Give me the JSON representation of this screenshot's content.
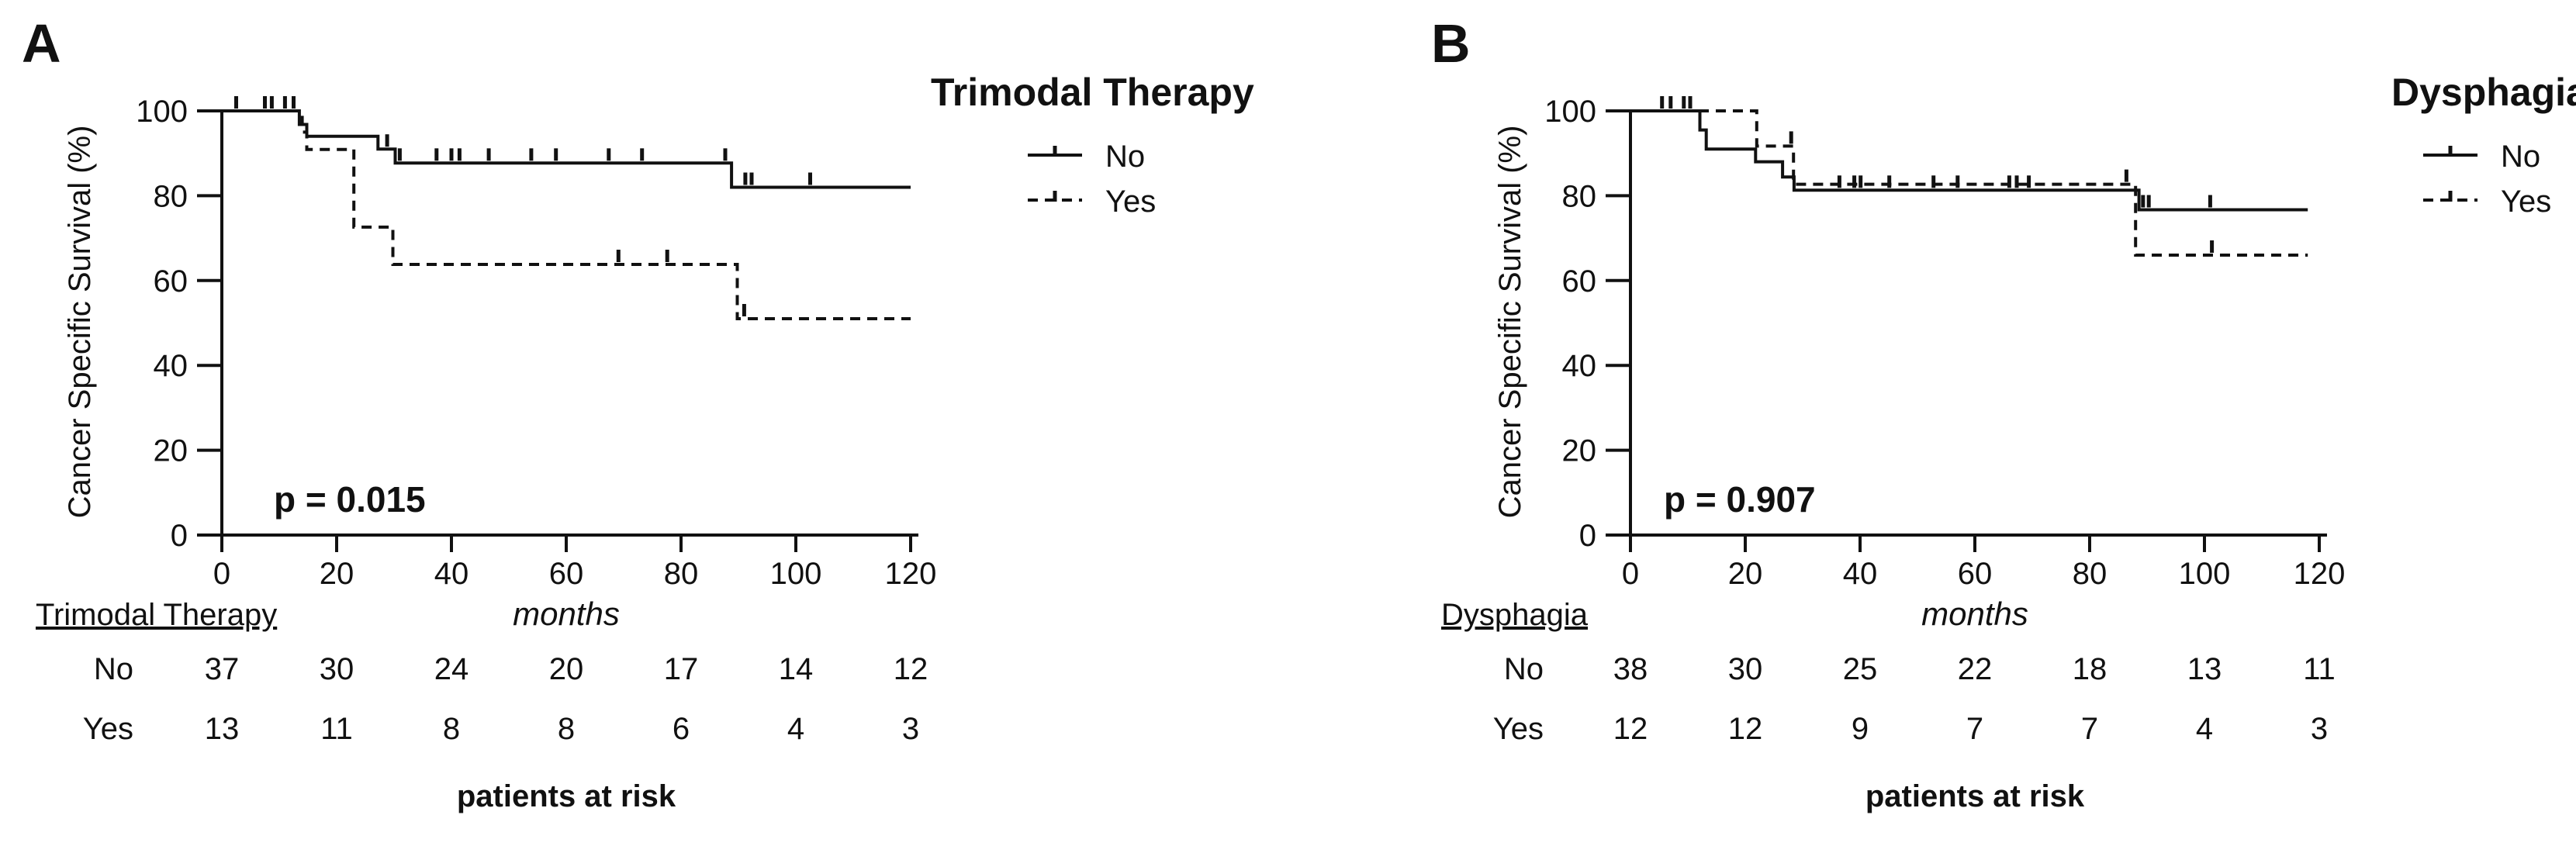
{
  "figure": {
    "background_color": "#ffffff",
    "ink_color": "#111111",
    "panels": [
      {
        "label": "A",
        "ylabel": "Cancer Specific Survival (%)",
        "xlabel": "months",
        "p_value": "p = 0.015",
        "legend": {
          "title": "Trimodal Therapy",
          "entries": [
            {
              "label": "No",
              "style": "solid"
            },
            {
              "label": "Yes",
              "style": "dashed"
            }
          ]
        },
        "risk_table": {
          "title": "Trimodal Therapy",
          "rows": [
            {
              "label": "No"
            },
            {
              "label": "Yes"
            }
          ],
          "footer": "patients at risk"
        }
      },
      {
        "label": "B",
        "ylabel": "Cancer Specific Survival (%)",
        "xlabel": "months",
        "p_value": "p = 0.907",
        "legend": {
          "title": "Dysphagia",
          "entries": [
            {
              "label": "No",
              "style": "solid"
            },
            {
              "label": "Yes",
              "style": "dashed"
            }
          ]
        },
        "risk_table": {
          "title": "Dysphagia",
          "rows": [
            {
              "label": "No"
            },
            {
              "label": "Yes"
            }
          ],
          "footer": "patients at risk"
        }
      }
    ]
  },
  "chart_data": [
    {
      "type": "line",
      "subtype": "kaplan-meier-step",
      "panel": "A",
      "group_variable": "Trimodal Therapy",
      "p_value_text": "p = 0.015",
      "xlabel": "months",
      "ylabel": "Cancer Specific Survival (%)",
      "xlim": [
        0,
        120
      ],
      "ylim": [
        0,
        100
      ],
      "xticks": [
        0,
        20,
        40,
        60,
        80,
        100,
        120
      ],
      "yticks": [
        0,
        20,
        40,
        60,
        80,
        100
      ],
      "grid": false,
      "legend_position": "right-top",
      "series": [
        {
          "name": "No",
          "style": "solid",
          "steps": [
            [
              0,
              100
            ],
            [
              13.5,
              100
            ],
            [
              13.5,
              96.8
            ],
            [
              14.8,
              96.8
            ],
            [
              14.8,
              94
            ],
            [
              27.2,
              94
            ],
            [
              27.2,
              91
            ],
            [
              30.2,
              91
            ],
            [
              30.2,
              87.7
            ],
            [
              88.8,
              87.7
            ],
            [
              88.8,
              82
            ],
            [
              120,
              82
            ]
          ],
          "censors": [
            [
              2.5,
              100
            ],
            [
              7.5,
              100
            ],
            [
              8.7,
              100
            ],
            [
              11,
              100
            ],
            [
              12.5,
              100
            ],
            [
              28.8,
              91
            ],
            [
              31,
              87.7
            ],
            [
              37.4,
              87.7
            ],
            [
              40,
              87.7
            ],
            [
              41.4,
              87.7
            ],
            [
              46.5,
              87.7
            ],
            [
              53.9,
              87.7
            ],
            [
              58.2,
              87.7
            ],
            [
              67.4,
              87.7
            ],
            [
              73.2,
              87.7
            ],
            [
              87.7,
              87.7
            ],
            [
              91.2,
              82
            ],
            [
              92.3,
              82
            ],
            [
              102.5,
              82
            ]
          ]
        },
        {
          "name": "Yes",
          "style": "dashed",
          "steps": [
            [
              0,
              100
            ],
            [
              14,
              100
            ],
            [
              14,
              95
            ],
            [
              14.8,
              95
            ],
            [
              14.8,
              90.9
            ],
            [
              23,
              90.9
            ],
            [
              23,
              72.6
            ],
            [
              29.8,
              72.6
            ],
            [
              29.8,
              63.8
            ],
            [
              89.8,
              63.8
            ],
            [
              89.8,
              51
            ],
            [
              120,
              51
            ]
          ],
          "censors": [
            [
              69.1,
              63.8
            ],
            [
              77.6,
              63.8
            ],
            [
              91,
              51
            ]
          ]
        }
      ],
      "risk_table": {
        "times": [
          0,
          20,
          40,
          60,
          80,
          100,
          120
        ],
        "rows": [
          {
            "label": "No",
            "counts": [
              37,
              30,
              24,
              20,
              17,
              14,
              12
            ]
          },
          {
            "label": "Yes",
            "counts": [
              13,
              11,
              8,
              8,
              6,
              4,
              3
            ]
          }
        ]
      }
    },
    {
      "type": "line",
      "subtype": "kaplan-meier-step",
      "panel": "B",
      "group_variable": "Dysphagia",
      "p_value_text": "p = 0.907",
      "xlabel": "months",
      "ylabel": "Cancer Specific Survival (%)",
      "xlim": [
        0,
        120
      ],
      "ylim": [
        0,
        100
      ],
      "xticks": [
        0,
        20,
        40,
        60,
        80,
        100,
        120
      ],
      "yticks": [
        0,
        20,
        40,
        60,
        80,
        100
      ],
      "grid": false,
      "legend_position": "right-top",
      "series": [
        {
          "name": "No",
          "style": "solid",
          "steps": [
            [
              0,
              100
            ],
            [
              12.1,
              100
            ],
            [
              12.1,
              95.5
            ],
            [
              13.2,
              95.5
            ],
            [
              13.2,
              91
            ],
            [
              21.8,
              91
            ],
            [
              21.8,
              88
            ],
            [
              26.5,
              88
            ],
            [
              26.5,
              84.4
            ],
            [
              28.5,
              84.4
            ],
            [
              28.5,
              81.3
            ],
            [
              88.6,
              81.3
            ],
            [
              88.6,
              76.7
            ],
            [
              118,
              76.7
            ]
          ],
          "censors": [
            [
              5.5,
              100
            ],
            [
              7,
              100
            ],
            [
              9.3,
              100
            ],
            [
              10.4,
              100
            ],
            [
              36.4,
              81.3
            ],
            [
              39,
              81.3
            ],
            [
              40.1,
              81.3
            ],
            [
              45.1,
              81.3
            ],
            [
              52.8,
              81.3
            ],
            [
              57,
              81.3
            ],
            [
              66,
              81.3
            ],
            [
              67.3,
              81.3
            ],
            [
              69.4,
              81.3
            ],
            [
              89.3,
              76.7
            ],
            [
              90.3,
              76.7
            ],
            [
              101,
              76.7
            ]
          ]
        },
        {
          "name": "Yes",
          "style": "dashed",
          "steps": [
            [
              0,
              100
            ],
            [
              22,
              100
            ],
            [
              22,
              91.7
            ],
            [
              28.4,
              91.7
            ],
            [
              28.4,
              82.7
            ],
            [
              88,
              82.7
            ],
            [
              88,
              66
            ],
            [
              118,
              66
            ]
          ],
          "censors": [
            [
              28,
              91.7
            ],
            [
              86.4,
              82.7
            ],
            [
              101.3,
              66
            ]
          ]
        }
      ],
      "risk_table": {
        "times": [
          0,
          20,
          40,
          60,
          80,
          100,
          120
        ],
        "rows": [
          {
            "label": "No",
            "counts": [
              38,
              30,
              25,
              22,
              18,
              13,
              11
            ]
          },
          {
            "label": "Yes",
            "counts": [
              12,
              12,
              9,
              7,
              7,
              4,
              3
            ]
          }
        ]
      }
    }
  ]
}
